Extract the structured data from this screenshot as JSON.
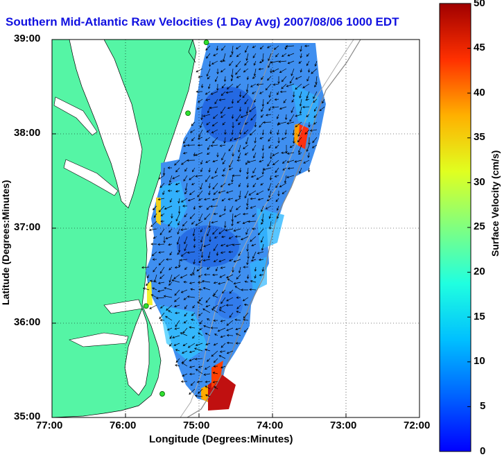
{
  "title": "Southern Mid-Atlantic Raw Velocities (1 Day Avg) 2007/08/06 1000 EDT",
  "map": {
    "xlabel": "Longitude (Degrees:Minutes)",
    "ylabel": "Latitude (Degrees:Minutes)",
    "x_ticks": [
      "77:00",
      "76:00",
      "75:00",
      "74:00",
      "73:00",
      "72:00"
    ],
    "y_ticks": [
      "39:00",
      "38:00",
      "37:00",
      "36:00",
      "35:00"
    ],
    "lon_range": [
      -77.0,
      -72.0
    ],
    "lat_range": [
      35.0,
      39.0
    ],
    "land_color": "#55f5a5",
    "grid": "dotted"
  },
  "colorbar": {
    "label": "Surface Velocity (cm/s)",
    "range": [
      0,
      50
    ],
    "ticks": [
      "50",
      "45",
      "40",
      "35",
      "30",
      "25",
      "20",
      "15",
      "10",
      "5",
      "0"
    ],
    "colormap": "jet"
  },
  "stations": [
    {
      "lon": -74.9,
      "lat": 38.97
    },
    {
      "lon": -75.15,
      "lat": 38.22
    },
    {
      "lon": -75.72,
      "lat": 36.18
    },
    {
      "lon": -75.5,
      "lat": 35.25
    }
  ],
  "chart_data": {
    "type": "heatmap",
    "title": "Southern Mid-Atlantic Raw Velocities (1 Day Avg) 2007/08/06 1000 EDT",
    "xlabel": "Longitude (Degrees:Minutes)",
    "ylabel": "Latitude (Degrees:Minutes)",
    "xlim": [
      -77.0,
      -72.0
    ],
    "ylim": [
      35.0,
      39.0
    ],
    "colorbar_label": "Surface Velocity (cm/s)",
    "clim": [
      0,
      50
    ],
    "max_speed_regions": [
      {
        "lon": -74.75,
        "lat": 35.3,
        "speed": 50
      },
      {
        "lon": -73.55,
        "lat": 37.95,
        "speed": 40
      },
      {
        "lon": -75.8,
        "lat": 36.45,
        "speed": 30
      }
    ]
  }
}
